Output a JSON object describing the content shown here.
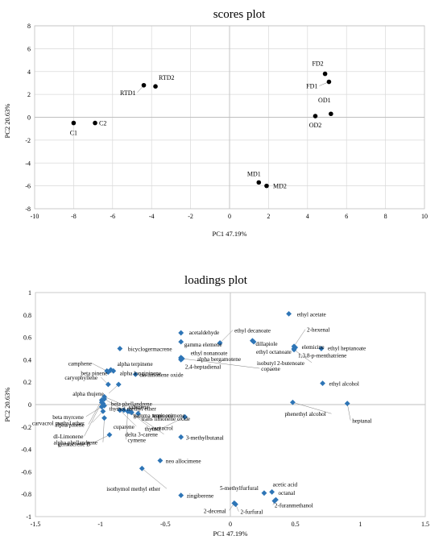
{
  "chart_data": [
    {
      "type": "scatter",
      "title": "scores plot",
      "xlabel": "PC1 47.19%",
      "ylabel": "PC2 20.63%",
      "xlim": [
        -10,
        10
      ],
      "ylim": [
        -8,
        8
      ],
      "xticks": [
        -10,
        -8,
        -6,
        -4,
        -2,
        0,
        2,
        4,
        6,
        8,
        10
      ],
      "yticks": [
        -8,
        -6,
        -4,
        -2,
        0,
        2,
        4,
        6,
        8
      ],
      "grid": true,
      "marker_color": "#000000",
      "points": [
        {
          "label": "C1",
          "x": -8.0,
          "y": -0.5
        },
        {
          "label": "C2",
          "x": -6.9,
          "y": -0.5
        },
        {
          "label": "RTD1",
          "x": -4.4,
          "y": 2.8
        },
        {
          "label": "RTD2",
          "x": -3.8,
          "y": 2.7
        },
        {
          "label": "FD2",
          "x": 4.9,
          "y": 3.8
        },
        {
          "label": "FD1",
          "x": 5.1,
          "y": 3.1
        },
        {
          "label": "OD1",
          "x": 5.2,
          "y": 0.3
        },
        {
          "label": "OD2",
          "x": 4.4,
          "y": 0.1
        },
        {
          "label": "MD1",
          "x": 1.5,
          "y": -5.7
        },
        {
          "label": "MD2",
          "x": 1.9,
          "y": -6.0
        }
      ]
    },
    {
      "type": "scatter",
      "title": "loadings plot",
      "xlabel": "PC1 47.19%",
      "ylabel": "PC2 20.63%",
      "xlim": [
        -1.5,
        1.5
      ],
      "ylim": [
        -1,
        1
      ],
      "xticks": [
        -1.5,
        -1,
        -0.5,
        0,
        0.5,
        1,
        1.5
      ],
      "yticks": [
        -1,
        -0.8,
        -0.6,
        -0.4,
        -0.2,
        0,
        0.2,
        0.4,
        0.6,
        0.8,
        1
      ],
      "grid": false,
      "marker_color": "#2e75b6",
      "points": [
        {
          "label": "ethyl acetate",
          "x": 0.45,
          "y": 0.81
        },
        {
          "label": "acetaldehyde",
          "x": -0.38,
          "y": 0.64
        },
        {
          "label": "ethyl decanoate",
          "x": -0.08,
          "y": 0.55
        },
        {
          "label": "dillapiole",
          "x": 0.17,
          "y": 0.57
        },
        {
          "label": "ethyl octanoate",
          "x": 0.18,
          "y": 0.56
        },
        {
          "label": "2-hexenal",
          "x": 0.49,
          "y": 0.52
        },
        {
          "label": "elemicine",
          "x": 0.5,
          "y": 0.51
        },
        {
          "label": "1,3,8-p-menthatriene",
          "x": 0.49,
          "y": 0.5
        },
        {
          "label": "ethyl heptanoate",
          "x": 0.7,
          "y": 0.5
        },
        {
          "label": "bicyclogermacrene",
          "x": -0.85,
          "y": 0.5
        },
        {
          "label": "gamma elemene",
          "x": -0.38,
          "y": 0.56
        },
        {
          "label": "ethyl nonanoate",
          "x": -0.38,
          "y": 0.42
        },
        {
          "label": "alpha bergamotene",
          "x": -0.38,
          "y": 0.41
        },
        {
          "label": "2,4-heptadienal",
          "x": -0.38,
          "y": 0.4
        },
        {
          "label": "copaene",
          "x": -0.37,
          "y": 0.41
        },
        {
          "label": "isobutyl 2-butenoate",
          "x": 0.49,
          "y": 0.49
        },
        {
          "label": "alpha terpinene",
          "x": -0.92,
          "y": 0.31
        },
        {
          "label": "alpha longipinene",
          "x": -0.9,
          "y": 0.3
        },
        {
          "label": "camphene",
          "x": -0.95,
          "y": 0.3
        },
        {
          "label": "beta pinene",
          "x": -0.94,
          "y": 0.29
        },
        {
          "label": "cis limonene oxide",
          "x": -0.73,
          "y": 0.27
        },
        {
          "label": "caryophyllene",
          "x": -0.94,
          "y": 0.18
        },
        {
          "label": "alpha thujene",
          "x": -0.86,
          "y": 0.18
        },
        {
          "label": "sabinene",
          "x": -0.97,
          "y": 0.07
        },
        {
          "label": "gamma terpinene",
          "x": -0.97,
          "y": 0.05
        },
        {
          "label": "alpha pinene",
          "x": -0.99,
          "y": 0.04
        },
        {
          "label": "dl-Limonene",
          "x": -0.99,
          "y": 0.02
        },
        {
          "label": "beta phellandrene",
          "x": -0.98,
          "y": 0.01
        },
        {
          "label": "thymol methyl ether",
          "x": -0.97,
          "y": -0.01
        },
        {
          "label": "beta myrcene",
          "x": -0.99,
          "y": -0.02
        },
        {
          "label": "trans limonene oxide",
          "x": -0.82,
          "y": -0.05
        },
        {
          "label": "carvacrol methyl ether",
          "x": -0.98,
          "y": -0.06
        },
        {
          "label": "carvacrol",
          "x": -0.78,
          "y": -0.06
        },
        {
          "label": "trans ocimene",
          "x": -0.71,
          "y": -0.08
        },
        {
          "label": "thymol",
          "x": -0.35,
          "y": -0.11
        },
        {
          "label": "alpha phellandrene",
          "x": -0.97,
          "y": -0.12
        },
        {
          "label": "cuparene",
          "x": -0.85,
          "y": -0.05
        },
        {
          "label": "germacrene B",
          "x": -0.93,
          "y": -0.27
        },
        {
          "label": "cymene",
          "x": -0.79,
          "y": -0.06
        },
        {
          "label": "delta 3-carene",
          "x": -0.76,
          "y": -0.07
        },
        {
          "label": "3-methylbutanal",
          "x": -0.38,
          "y": -0.29
        },
        {
          "label": "ethyl alcohol",
          "x": 0.71,
          "y": 0.19
        },
        {
          "label": "phenethyl alcohol",
          "x": 0.48,
          "y": 0.02
        },
        {
          "label": "heptanal",
          "x": 0.9,
          "y": 0.01
        },
        {
          "label": "neo allocimene",
          "x": -0.54,
          "y": -0.5
        },
        {
          "label": "isothymol methyl ether",
          "x": -0.68,
          "y": -0.57
        },
        {
          "label": "zingiberene",
          "x": -0.38,
          "y": -0.81
        },
        {
          "label": "5-methylfurfural",
          "x": 0.26,
          "y": -0.79
        },
        {
          "label": "acetic acid",
          "x": 0.32,
          "y": -0.78
        },
        {
          "label": "octanal",
          "x": 0.35,
          "y": -0.85
        },
        {
          "label": "2-furanmethanol",
          "x": 0.34,
          "y": -0.86
        },
        {
          "label": "2-decenal",
          "x": 0.03,
          "y": -0.88
        },
        {
          "label": "2-furfural",
          "x": 0.04,
          "y": -0.89
        }
      ]
    }
  ]
}
